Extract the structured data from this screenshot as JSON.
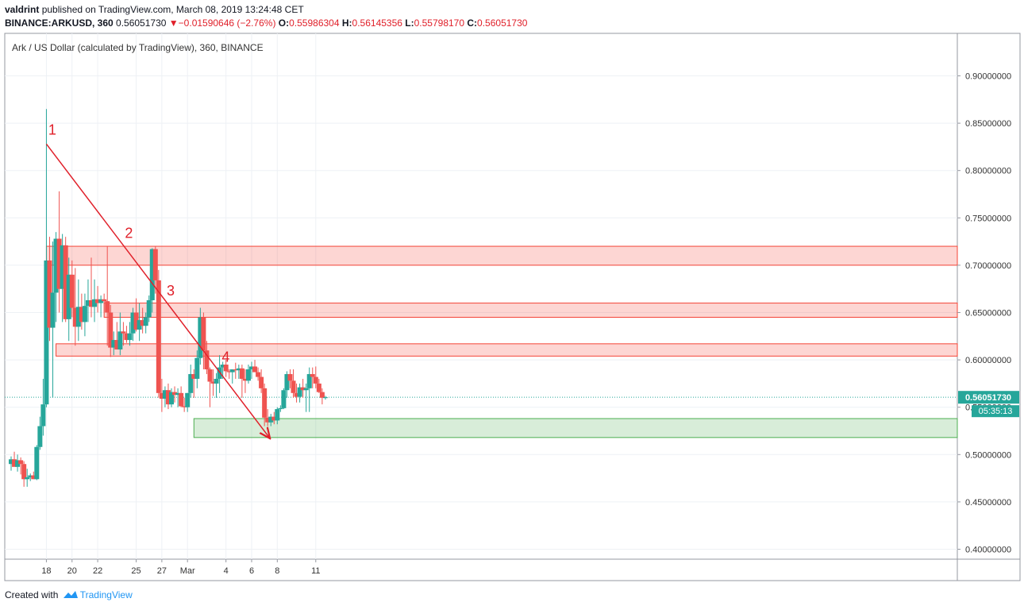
{
  "header": {
    "user": "valdrint",
    "published_text": "published on TradingView.com, March 08, 2019 13:24:48 CET",
    "symbol": "BINANCE:ARKUSD, 360",
    "last": "0.56051730",
    "change_arrow": "▼",
    "change": "−0.01590646 (−2.76%)",
    "o_label": "O:",
    "o": "0.55986304",
    "h_label": "H:",
    "h": "0.56145356",
    "l_label": "L:",
    "l": "0.55798170",
    "c_label": "C:",
    "c": "0.56051730"
  },
  "footer": {
    "created_with": "Created with",
    "brand": "TradingView"
  },
  "colors": {
    "up": "#26a69a",
    "down": "#ef5350",
    "trend": "#e0202a",
    "resistance": "#f44336",
    "support": "#4caf50"
  },
  "chart_data": {
    "type": "candlestick",
    "title": "Ark / US Dollar (calculated by TradingView), 360, BINANCE",
    "ylim": [
      0.38,
      0.95
    ],
    "y_ticks": [
      "0.90000000",
      "0.85000000",
      "0.80000000",
      "0.75000000",
      "0.70000000",
      "0.65000000",
      "0.60000000",
      "0.55000000",
      "0.50000000",
      "0.45000000",
      "0.40000000"
    ],
    "x_ticks": [
      {
        "label": "18",
        "i": 11
      },
      {
        "label": "20",
        "i": 19
      },
      {
        "label": "22",
        "i": 27
      },
      {
        "label": "25",
        "i": 39
      },
      {
        "label": "27",
        "i": 47
      },
      {
        "label": "Mar",
        "i": 55
      },
      {
        "label": "4",
        "i": 67
      },
      {
        "label": "6",
        "i": 75
      },
      {
        "label": "8",
        "i": 83
      },
      {
        "label": "11",
        "i": 95
      }
    ],
    "price_label": "0.56051730",
    "countdown_label": "05:35:13",
    "current_price": 0.5605,
    "candles": [
      [
        0.49,
        0.498,
        0.483,
        0.495
      ],
      [
        0.495,
        0.503,
        0.488,
        0.487
      ],
      [
        0.487,
        0.5,
        0.482,
        0.494
      ],
      [
        0.494,
        0.497,
        0.479,
        0.49
      ],
      [
        0.49,
        0.493,
        0.466,
        0.474
      ],
      [
        0.474,
        0.485,
        0.466,
        0.476
      ],
      [
        0.476,
        0.48,
        0.472,
        0.478
      ],
      [
        0.478,
        0.482,
        0.474,
        0.474
      ],
      [
        0.474,
        0.51,
        0.473,
        0.508
      ],
      [
        0.508,
        0.54,
        0.505,
        0.53
      ],
      [
        0.53,
        0.58,
        0.52,
        0.553
      ],
      [
        0.553,
        0.865,
        0.55,
        0.705
      ],
      [
        0.705,
        0.73,
        0.62,
        0.634
      ],
      [
        0.634,
        0.725,
        0.56,
        0.671
      ],
      [
        0.671,
        0.735,
        0.64,
        0.728
      ],
      [
        0.728,
        0.778,
        0.65,
        0.675
      ],
      [
        0.675,
        0.733,
        0.64,
        0.721
      ],
      [
        0.721,
        0.73,
        0.64,
        0.643
      ],
      [
        0.643,
        0.708,
        0.62,
        0.69
      ],
      [
        0.69,
        0.705,
        0.645,
        0.655
      ],
      [
        0.655,
        0.697,
        0.615,
        0.635
      ],
      [
        0.635,
        0.685,
        0.62,
        0.656
      ],
      [
        0.656,
        0.67,
        0.632,
        0.64
      ],
      [
        0.64,
        0.67,
        0.625,
        0.657
      ],
      [
        0.657,
        0.685,
        0.64,
        0.663
      ],
      [
        0.663,
        0.708,
        0.645,
        0.656
      ],
      [
        0.656,
        0.685,
        0.64,
        0.664
      ],
      [
        0.664,
        0.678,
        0.65,
        0.66
      ],
      [
        0.66,
        0.668,
        0.645,
        0.664
      ],
      [
        0.664,
        0.67,
        0.65,
        0.662
      ],
      [
        0.662,
        0.72,
        0.615,
        0.65
      ],
      [
        0.65,
        0.658,
        0.603,
        0.613
      ],
      [
        0.613,
        0.63,
        0.605,
        0.621
      ],
      [
        0.621,
        0.64,
        0.615,
        0.611
      ],
      [
        0.611,
        0.65,
        0.605,
        0.63
      ],
      [
        0.63,
        0.64,
        0.615,
        0.628
      ],
      [
        0.628,
        0.636,
        0.618,
        0.621
      ],
      [
        0.621,
        0.64,
        0.615,
        0.628
      ],
      [
        0.628,
        0.655,
        0.62,
        0.65
      ],
      [
        0.65,
        0.665,
        0.63,
        0.632
      ],
      [
        0.632,
        0.66,
        0.62,
        0.642
      ],
      [
        0.642,
        0.655,
        0.628,
        0.636
      ],
      [
        0.636,
        0.65,
        0.628,
        0.645
      ],
      [
        0.645,
        0.668,
        0.64,
        0.663
      ],
      [
        0.663,
        0.718,
        0.65,
        0.717
      ],
      [
        0.717,
        0.72,
        0.67,
        0.684
      ],
      [
        0.684,
        0.695,
        0.56,
        0.565
      ],
      [
        0.565,
        0.58,
        0.545,
        0.559
      ],
      [
        0.559,
        0.572,
        0.55,
        0.568
      ],
      [
        0.568,
        0.575,
        0.548,
        0.553
      ],
      [
        0.553,
        0.57,
        0.55,
        0.566
      ],
      [
        0.566,
        0.572,
        0.555,
        0.563
      ],
      [
        0.563,
        0.57,
        0.55,
        0.565
      ],
      [
        0.565,
        0.572,
        0.55,
        0.551
      ],
      [
        0.551,
        0.56,
        0.545,
        0.55
      ],
      [
        0.55,
        0.565,
        0.545,
        0.565
      ],
      [
        0.565,
        0.595,
        0.56,
        0.585
      ],
      [
        0.585,
        0.59,
        0.56,
        0.58
      ],
      [
        0.58,
        0.61,
        0.57,
        0.602
      ],
      [
        0.602,
        0.655,
        0.595,
        0.645
      ],
      [
        0.645,
        0.65,
        0.59,
        0.61
      ],
      [
        0.61,
        0.62,
        0.585,
        0.59
      ],
      [
        0.59,
        0.592,
        0.55,
        0.577
      ],
      [
        0.577,
        0.59,
        0.562,
        0.575
      ],
      [
        0.575,
        0.586,
        0.56,
        0.58
      ],
      [
        0.58,
        0.605,
        0.565,
        0.592
      ],
      [
        0.592,
        0.598,
        0.58,
        0.595
      ],
      [
        0.595,
        0.6,
        0.582,
        0.588
      ],
      [
        0.588,
        0.59,
        0.58,
        0.587
      ],
      [
        0.587,
        0.59,
        0.575,
        0.59
      ],
      [
        0.59,
        0.597,
        0.58,
        0.589
      ],
      [
        0.589,
        0.595,
        0.58,
        0.591
      ],
      [
        0.591,
        0.595,
        0.56,
        0.58
      ],
      [
        0.58,
        0.59,
        0.565,
        0.578
      ],
      [
        0.578,
        0.595,
        0.575,
        0.59
      ],
      [
        0.59,
        0.598,
        0.58,
        0.593
      ],
      [
        0.593,
        0.6,
        0.588,
        0.587
      ],
      [
        0.587,
        0.592,
        0.578,
        0.582
      ],
      [
        0.582,
        0.59,
        0.565,
        0.57
      ],
      [
        0.57,
        0.575,
        0.53,
        0.539
      ],
      [
        0.539,
        0.548,
        0.53,
        0.534
      ],
      [
        0.534,
        0.543,
        0.53,
        0.54
      ],
      [
        0.54,
        0.545,
        0.532,
        0.536
      ],
      [
        0.536,
        0.55,
        0.532,
        0.548
      ]
    ],
    "candles2": [
      [
        0.548,
        0.552,
        0.545,
        0.549
      ],
      [
        0.549,
        0.57,
        0.548,
        0.568
      ],
      [
        0.568,
        0.588,
        0.56,
        0.585
      ],
      [
        0.585,
        0.59,
        0.57,
        0.578
      ],
      [
        0.578,
        0.59,
        0.56,
        0.565
      ],
      [
        0.565,
        0.575,
        0.555,
        0.561
      ],
      [
        0.561,
        0.575,
        0.555,
        0.571
      ],
      [
        0.571,
        0.58,
        0.56,
        0.568
      ],
      [
        0.568,
        0.575,
        0.545,
        0.57
      ],
      [
        0.57,
        0.592,
        0.545,
        0.585
      ],
      [
        0.585,
        0.592,
        0.57,
        0.582
      ],
      [
        0.582,
        0.593,
        0.57,
        0.575
      ],
      [
        0.575,
        0.58,
        0.565,
        0.566
      ],
      [
        0.566,
        0.57,
        0.553,
        0.56
      ],
      [
        0.56,
        0.562,
        0.558,
        0.5605
      ]
    ],
    "zones": [
      {
        "kind": "resistance",
        "from": 0.7,
        "to": 0.72,
        "x_start_i": 11
      },
      {
        "kind": "resistance",
        "from": 0.645,
        "to": 0.66,
        "x_start_i": 29
      },
      {
        "kind": "resistance",
        "from": 0.604,
        "to": 0.617,
        "x_start_i": 14
      },
      {
        "kind": "support",
        "from": 0.518,
        "to": 0.538,
        "x_start_i": 57
      }
    ],
    "trendline": {
      "from": {
        "i": 11,
        "price": 0.828
      },
      "to": {
        "i": 80.5,
        "price": 0.518
      }
    },
    "annotations": [
      {
        "text": "1",
        "i": 11.6,
        "price": 0.838
      },
      {
        "text": "2",
        "i": 35.5,
        "price": 0.729
      },
      {
        "text": "3",
        "i": 48.5,
        "price": 0.668
      },
      {
        "text": "4",
        "i": 65.7,
        "price": 0.598
      }
    ]
  }
}
